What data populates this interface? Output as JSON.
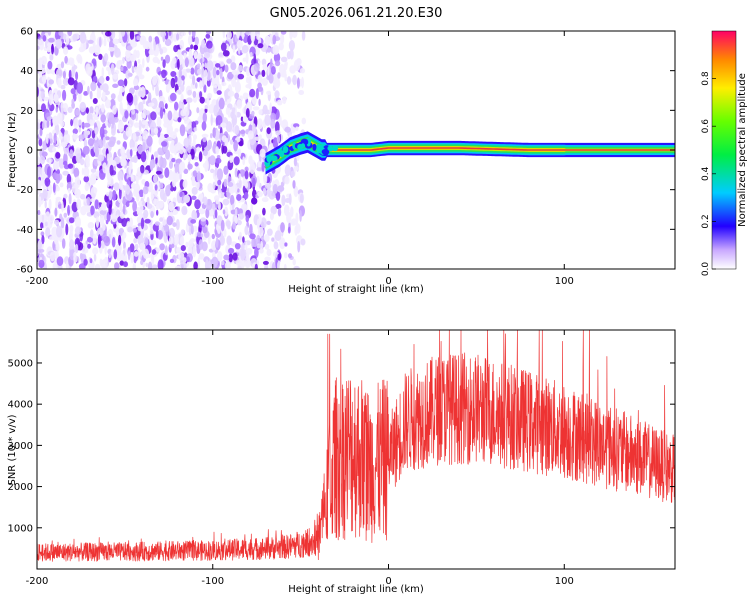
{
  "title": "GN05.2026.061.21.20.E30",
  "chart_data": [
    {
      "type": "heatmap",
      "name": "spectrogram",
      "xlabel": "Height of straight line (km)",
      "ylabel": "Frequency (Hz)",
      "xlim": [
        -200,
        163
      ],
      "ylim": [
        -60,
        60
      ],
      "x_ticks": [
        -200,
        -100,
        0,
        100
      ],
      "x_tick_labels": [
        "-200",
        "-100",
        "0",
        "100"
      ],
      "y_ticks": [
        -60,
        -40,
        -20,
        0,
        20,
        40,
        60
      ],
      "y_tick_labels": [
        "-60",
        "-40",
        "-20",
        "0",
        "20",
        "40",
        "60"
      ],
      "noise_region_x": [
        -200,
        -48
      ],
      "signal_track": [
        {
          "x": -70,
          "y": -7
        },
        {
          "x": -62,
          "y": -3
        },
        {
          "x": -56,
          "y": 1
        },
        {
          "x": -50,
          "y": 3
        },
        {
          "x": -46,
          "y": 4
        },
        {
          "x": -42,
          "y": 2
        },
        {
          "x": -38,
          "y": 0
        },
        {
          "x": -20,
          "y": 0
        },
        {
          "x": -10,
          "y": 0
        },
        {
          "x": 0,
          "y": 1
        },
        {
          "x": 40,
          "y": 1
        },
        {
          "x": 80,
          "y": 0
        },
        {
          "x": 163,
          "y": 0
        }
      ],
      "colorbar": {
        "label": "Normalized spectral amplitude",
        "range": [
          0,
          1
        ],
        "ticks": [
          0.0,
          0.2,
          0.4,
          0.6,
          0.8
        ],
        "tick_labels": [
          "0.0",
          "0.2",
          "0.4",
          "0.6",
          "0.8"
        ]
      }
    },
    {
      "type": "line",
      "name": "snr",
      "xlabel": "Height of straight line (km)",
      "ylabel": "SNR (10 * v/v)",
      "xlim": [
        -200,
        163
      ],
      "ylim": [
        0,
        5800
      ],
      "x_ticks": [
        -200,
        -100,
        0,
        100
      ],
      "x_tick_labels": [
        "-200",
        "-100",
        "0",
        "100"
      ],
      "y_ticks": [
        1000,
        2000,
        3000,
        4000,
        5000
      ],
      "y_tick_labels": [
        "1000",
        "2000",
        "3000",
        "4000",
        "5000"
      ],
      "color": "#ee3333",
      "envelope": [
        {
          "x": -200,
          "y": 400
        },
        {
          "x": -150,
          "y": 420
        },
        {
          "x": -100,
          "y": 450
        },
        {
          "x": -60,
          "y": 520
        },
        {
          "x": -40,
          "y": 700
        },
        {
          "x": -34,
          "y": 2000
        },
        {
          "x": -30,
          "y": 2700
        },
        {
          "x": -20,
          "y": 2900
        },
        {
          "x": -10,
          "y": 2500
        },
        {
          "x": 0,
          "y": 2700
        },
        {
          "x": 10,
          "y": 3600
        },
        {
          "x": 30,
          "y": 3900
        },
        {
          "x": 50,
          "y": 3900
        },
        {
          "x": 70,
          "y": 3700
        },
        {
          "x": 100,
          "y": 3350
        },
        {
          "x": 130,
          "y": 2900
        },
        {
          "x": 163,
          "y": 2400
        }
      ]
    }
  ]
}
